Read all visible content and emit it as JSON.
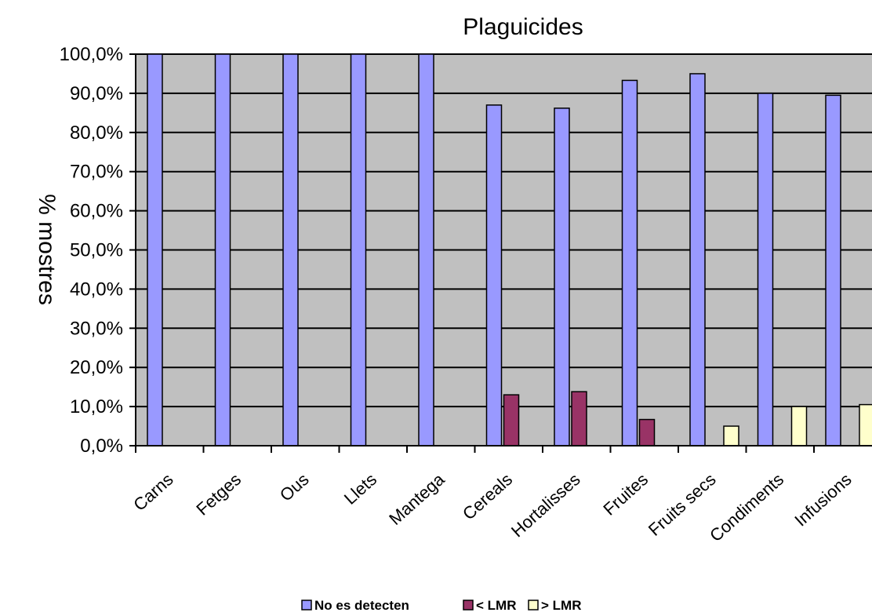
{
  "chart_data": {
    "type": "bar",
    "title": "Plaguicides",
    "xlabel": "",
    "ylabel": "% mostres",
    "ylim": [
      0,
      100
    ],
    "yticks": [
      "0,0%",
      "10,0%",
      "20,0%",
      "30,0%",
      "40,0%",
      "50,0%",
      "60,0%",
      "70,0%",
      "80,0%",
      "90,0%",
      "100,0%"
    ],
    "categories": [
      "Carns",
      "Fetges",
      "Ous",
      "Llets",
      "Mantega",
      "Cereals",
      "Hortalisses",
      "Fruites",
      "Fruits secs",
      "Condiments",
      "Infusions"
    ],
    "series": [
      {
        "name": "No es detecten",
        "color": "#9999ff",
        "values": [
          100,
          100,
          100,
          100,
          100,
          87,
          86.2,
          93.3,
          95,
          90,
          89.5
        ]
      },
      {
        "name": "< LMR",
        "color": "#993366",
        "values": [
          0,
          0,
          0,
          0,
          0,
          13,
          13.8,
          6.7,
          0,
          0,
          0
        ]
      },
      {
        "name": "> LMR",
        "color": "#ffffcc",
        "values": [
          0,
          0,
          0,
          0,
          0,
          0,
          0,
          0,
          5,
          10,
          10.5
        ]
      }
    ],
    "grid": true,
    "plot_background": "#c0c0c0",
    "legend_position": "bottom"
  }
}
